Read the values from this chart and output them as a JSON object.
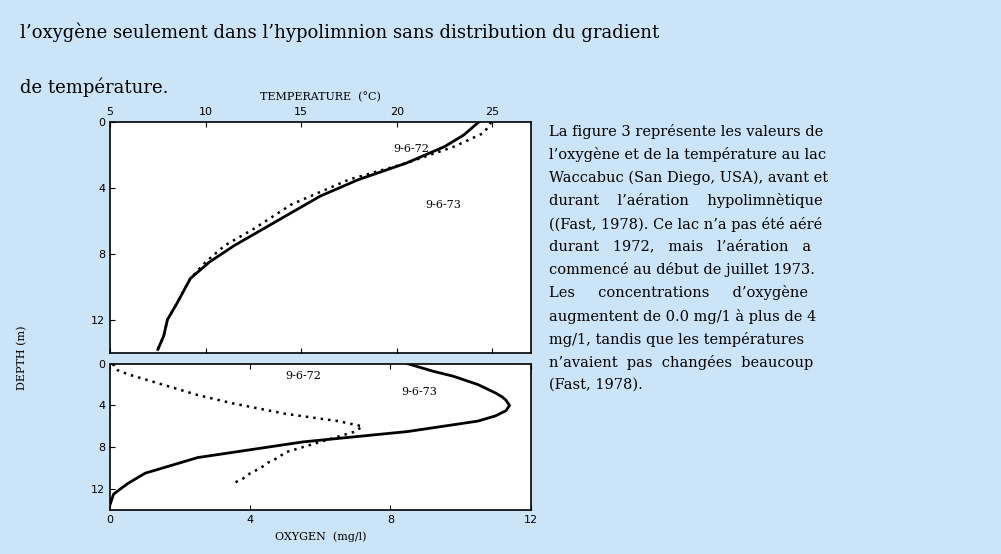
{
  "background_color": "#cce4f7",
  "plot_bg": "#ffffff",
  "fig_width": 10.01,
  "fig_height": 5.54,
  "dpi": 100,
  "temp_xlabel": "TEMPERATURE  (°C)",
  "temp_xlim": [
    5,
    27
  ],
  "temp_xticks": [
    5,
    10,
    15,
    20,
    25
  ],
  "temp_ylim": [
    14,
    0
  ],
  "temp_yticks": [
    0,
    4,
    8,
    12
  ],
  "oxy_xlabel": "OXYGEN  (mg/l)",
  "oxy_xlim": [
    0,
    12
  ],
  "oxy_xticks": [
    0,
    4,
    8,
    12
  ],
  "oxy_ylim": [
    14,
    0
  ],
  "oxy_yticks": [
    0,
    4,
    8,
    12
  ],
  "ylabel": "DEPTH (m)",
  "temp_1972_x": [
    24.9,
    24.9,
    24.8,
    24.5,
    23.0,
    20.5,
    17.5,
    14.5,
    12.5,
    11.0,
    10.0,
    9.2,
    8.5,
    8.0,
    7.8,
    7.5
  ],
  "temp_1972_y": [
    0.0,
    0.1,
    0.3,
    0.7,
    1.5,
    2.5,
    3.5,
    5.0,
    6.5,
    7.5,
    8.5,
    9.5,
    11.0,
    12.0,
    13.0,
    13.8
  ],
  "temp_1973_x": [
    24.3,
    24.0,
    23.5,
    22.5,
    20.5,
    18.0,
    16.0,
    14.5,
    13.0,
    11.5,
    10.2,
    9.2,
    8.5,
    8.0,
    7.8,
    7.5
  ],
  "temp_1973_y": [
    0.0,
    0.3,
    0.8,
    1.5,
    2.5,
    3.5,
    4.5,
    5.5,
    6.5,
    7.5,
    8.5,
    9.5,
    11.0,
    12.0,
    13.0,
    13.8
  ],
  "oxy_1972_x": [
    0.1,
    0.1,
    0.2,
    0.5,
    1.0,
    1.5,
    2.0,
    2.5,
    3.5,
    5.0,
    6.5,
    7.2,
    7.0,
    6.5,
    6.0,
    5.5,
    5.2,
    5.0,
    4.8,
    4.5,
    4.3,
    4.0,
    3.8,
    3.5
  ],
  "oxy_1972_y": [
    0.0,
    0.3,
    0.6,
    1.0,
    1.5,
    2.0,
    2.5,
    3.0,
    3.8,
    4.8,
    5.5,
    6.0,
    6.5,
    7.0,
    7.5,
    8.0,
    8.3,
    8.5,
    9.0,
    9.5,
    10.0,
    10.5,
    11.0,
    11.5
  ],
  "oxy_1973_x": [
    8.5,
    8.8,
    9.2,
    9.8,
    10.5,
    11.0,
    11.2,
    11.3,
    11.4,
    11.3,
    11.0,
    10.5,
    9.5,
    8.5,
    7.0,
    5.5,
    4.5,
    3.5,
    2.5,
    2.0,
    1.0,
    0.5,
    0.1,
    0.0
  ],
  "oxy_1973_y": [
    0.0,
    0.3,
    0.7,
    1.2,
    2.0,
    2.8,
    3.2,
    3.5,
    4.0,
    4.5,
    5.0,
    5.5,
    6.0,
    6.5,
    7.0,
    7.5,
    8.0,
    8.5,
    9.0,
    9.5,
    10.5,
    11.5,
    12.5,
    13.5
  ],
  "label_1972": "9-6-72",
  "label_1973": "9-6-73",
  "line_color": "#000000",
  "dotted_color": "#000000",
  "top_text_line1": "l’oxygène seulement dans l’hypolimnion sans distribution du gradient",
  "top_text_line2": "de température.",
  "right_text": "La figure 3 représente les valeurs de\nl’oxygène et de la température au lac\nWaccabuc (San Diego, USA), avant et\ndurant    l’aération    hypolimnètique\n((Fast, 1978). Ce lac n’a pas été aéré\ndurant   1972,   mais   l’aération   a\ncommencé au début de juillet 1973.\nLes     concentrations     d’oxygène\naugmentent de 0.0 mg/1 à plus de 4\nmg/1, tandis que les températures\nn’avaient  pas  changées  beaucoup\n(Fast, 1978)."
}
